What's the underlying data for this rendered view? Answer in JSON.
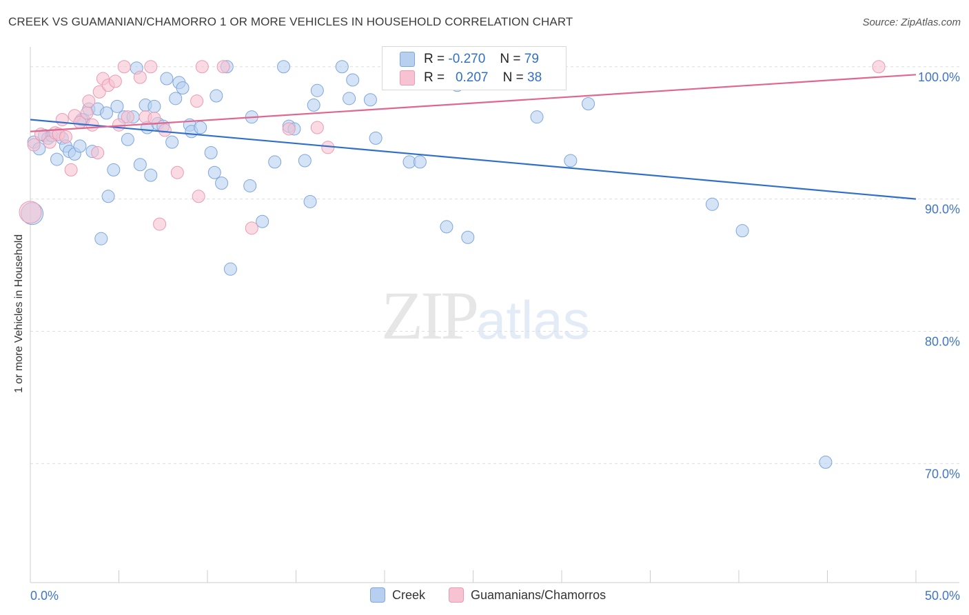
{
  "header": {
    "title": "CREEK VS GUAMANIAN/CHAMORRO 1 OR MORE VEHICLES IN HOUSEHOLD CORRELATION CHART",
    "source": "Source: ZipAtlas.com"
  },
  "watermark": {
    "zip": "ZIP",
    "atlas": "atlas"
  },
  "legend_box": {
    "rows": [
      {
        "r_label": "R =",
        "r_value": "-0.270",
        "n_label": "N =",
        "n_value": "79"
      },
      {
        "r_label": "R =",
        "r_value": "0.207",
        "n_label": "N =",
        "n_value": "38"
      }
    ]
  },
  "bottom_legend": {
    "series0": "Creek",
    "series1": "Guamanians/Chamorros"
  },
  "colors": {
    "creek_fill": "#b7d0f0",
    "creek_stroke": "#7ea6dc",
    "creek_line": "#2f6fca",
    "guam_fill": "#f7c3d2",
    "guam_stroke": "#eb9ab3",
    "guam_line": "#e06690",
    "tick_text": "#3f74c7",
    "grid": "#dddddd"
  },
  "chart_data": {
    "type": "scatter",
    "title": "CREEK VS GUAMANIAN/CHAMORRO 1 OR MORE VEHICLES IN HOUSEHOLD CORRELATION CHART",
    "xlabel": "",
    "ylabel": "1 or more Vehicles in Household",
    "xlim": [
      0,
      50
    ],
    "ylim": [
      61,
      101.5
    ],
    "x_tick_labels": [
      "0.0%",
      "50.0%"
    ],
    "y_ticks": [
      {
        "value": 100,
        "label": "100.0%"
      },
      {
        "value": 90,
        "label": "90.0%"
      },
      {
        "value": 80,
        "label": "80.0%"
      },
      {
        "value": 70,
        "label": "70.0%"
      }
    ],
    "grid": "horizontal dashed",
    "legend": "bottom-center",
    "series": [
      {
        "name": "Creek",
        "R": -0.27,
        "N": 79,
        "trend": {
          "x": [
            0,
            50
          ],
          "y": [
            96.0,
            90.0
          ]
        },
        "points": [
          [
            0.2,
            94.3
          ],
          [
            0.5,
            93.8
          ],
          [
            0.8,
            94.8
          ],
          [
            1.0,
            94.6
          ],
          [
            1.2,
            94.8
          ],
          [
            1.5,
            93.0
          ],
          [
            1.8,
            94.6
          ],
          [
            2.0,
            94.0
          ],
          [
            2.2,
            93.6
          ],
          [
            2.5,
            93.4
          ],
          [
            2.8,
            94.0
          ],
          [
            3.0,
            96.0
          ],
          [
            3.3,
            96.8
          ],
          [
            3.5,
            93.6
          ],
          [
            3.8,
            96.8
          ],
          [
            4.0,
            87.0
          ],
          [
            4.3,
            96.5
          ],
          [
            4.4,
            90.2
          ],
          [
            4.7,
            92.2
          ],
          [
            4.9,
            97.0
          ],
          [
            5.3,
            96.2
          ],
          [
            5.5,
            94.5
          ],
          [
            5.8,
            96.2
          ],
          [
            6.0,
            99.9
          ],
          [
            6.2,
            92.6
          ],
          [
            6.5,
            97.1
          ],
          [
            6.6,
            95.4
          ],
          [
            6.8,
            91.8
          ],
          [
            7.0,
            97.0
          ],
          [
            7.2,
            95.7
          ],
          [
            7.5,
            95.5
          ],
          [
            7.7,
            99.1
          ],
          [
            8.0,
            94.3
          ],
          [
            8.2,
            97.6
          ],
          [
            8.4,
            98.8
          ],
          [
            8.6,
            98.4
          ],
          [
            9.0,
            95.6
          ],
          [
            9.1,
            95.1
          ],
          [
            9.6,
            95.4
          ],
          [
            10.2,
            93.5
          ],
          [
            10.4,
            92.0
          ],
          [
            10.5,
            97.8
          ],
          [
            10.8,
            91.2
          ],
          [
            11.3,
            84.7
          ],
          [
            11.1,
            100.0
          ],
          [
            12.4,
            91.0
          ],
          [
            12.5,
            96.2
          ],
          [
            13.1,
            88.3
          ],
          [
            13.8,
            92.8
          ],
          [
            14.3,
            100.0
          ],
          [
            14.6,
            95.5
          ],
          [
            14.9,
            95.3
          ],
          [
            15.5,
            92.9
          ],
          [
            15.8,
            89.8
          ],
          [
            16.0,
            97.1
          ],
          [
            16.2,
            98.2
          ],
          [
            17.6,
            100.0
          ],
          [
            18.0,
            97.6
          ],
          [
            18.2,
            99.0
          ],
          [
            19.2,
            97.5
          ],
          [
            19.5,
            94.6
          ],
          [
            21.4,
            92.8
          ],
          [
            21.6,
            99.0
          ],
          [
            22.0,
            92.8
          ],
          [
            22.5,
            100.0
          ],
          [
            23.5,
            87.9
          ],
          [
            23.6,
            99.2
          ],
          [
            24.1,
            98.6
          ],
          [
            24.7,
            87.1
          ],
          [
            25.5,
            99.4
          ],
          [
            27.1,
            98.9
          ],
          [
            28.6,
            96.2
          ],
          [
            30.5,
            92.9
          ],
          [
            31.5,
            97.2
          ],
          [
            38.5,
            89.6
          ],
          [
            40.2,
            87.6
          ],
          [
            44.9,
            70.1
          ],
          [
            0.1,
            88.9
          ],
          [
            2.9,
            96.0
          ]
        ]
      },
      {
        "name": "Guamanians/Chamorros",
        "R": 0.207,
        "N": 38,
        "trend": {
          "x": [
            0,
            50
          ],
          "y": [
            95.1,
            99.4
          ]
        },
        "points": [
          [
            0.2,
            94.1
          ],
          [
            0.6,
            94.9
          ],
          [
            1.1,
            94.3
          ],
          [
            1.4,
            95.0
          ],
          [
            1.6,
            94.9
          ],
          [
            1.8,
            96.0
          ],
          [
            2.0,
            94.7
          ],
          [
            2.3,
            92.2
          ],
          [
            2.5,
            96.3
          ],
          [
            2.8,
            95.8
          ],
          [
            3.2,
            96.5
          ],
          [
            3.3,
            97.4
          ],
          [
            3.5,
            95.6
          ],
          [
            3.8,
            93.5
          ],
          [
            3.9,
            98.1
          ],
          [
            4.1,
            99.1
          ],
          [
            4.4,
            98.6
          ],
          [
            4.8,
            98.9
          ],
          [
            5.0,
            95.6
          ],
          [
            5.3,
            100.0
          ],
          [
            5.5,
            96.2
          ],
          [
            6.2,
            99.2
          ],
          [
            6.5,
            96.2
          ],
          [
            6.8,
            100.0
          ],
          [
            7.0,
            96.1
          ],
          [
            7.3,
            88.1
          ],
          [
            7.6,
            95.2
          ],
          [
            8.3,
            92.0
          ],
          [
            9.4,
            97.4
          ],
          [
            9.5,
            90.2
          ],
          [
            9.7,
            100.0
          ],
          [
            10.9,
            100.0
          ],
          [
            12.5,
            87.8
          ],
          [
            14.6,
            95.3
          ],
          [
            16.2,
            95.4
          ],
          [
            16.8,
            93.9
          ],
          [
            47.9,
            100.0
          ],
          [
            0.0,
            89.0
          ]
        ]
      }
    ]
  }
}
